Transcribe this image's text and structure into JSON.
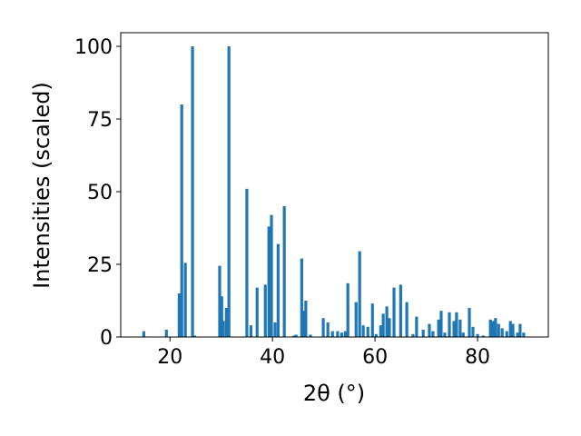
{
  "chart_data": {
    "type": "bar",
    "xlabel": "2θ (°)",
    "ylabel": "Intensities (scaled)",
    "color": "#1f77b4",
    "x": [
      14.9,
      19.3,
      21.8,
      22.3,
      23.0,
      24.4,
      24.8,
      29.7,
      30.1,
      30.4,
      31.0,
      31.5,
      35.0,
      35.8,
      37.0,
      38.6,
      39.3,
      39.8,
      40.5,
      41.1,
      42.3,
      44.2,
      44.6,
      45.7,
      46.0,
      46.5,
      47.4,
      49.9,
      50.8,
      51.7,
      52.7,
      53.5,
      54.2,
      54.7,
      56.3,
      57.0,
      57.7,
      58.6,
      59.5,
      60.2,
      61.1,
      61.6,
      62.3,
      62.8,
      63.7,
      65.0,
      66.2,
      67.4,
      68.1,
      69.4,
      70.6,
      71.3,
      72.4,
      72.9,
      73.6,
      74.5,
      75.4,
      75.9,
      76.6,
      77.2,
      78.4,
      79.1,
      80.0,
      81.1,
      82.5,
      83.0,
      83.5,
      84.1,
      84.8,
      85.7,
      86.4,
      86.9,
      87.8,
      88.3,
      89.0
    ],
    "values": [
      2,
      2.5,
      15,
      80,
      25.5,
      100,
      0.5,
      24.5,
      14,
      5.5,
      10,
      100,
      51,
      4,
      17,
      18,
      38,
      42,
      5,
      32,
      45,
      0.5,
      0.8,
      27,
      9,
      12.5,
      0.8,
      6.5,
      5,
      2,
      2,
      1.5,
      2,
      18.5,
      12,
      29.5,
      4,
      3.5,
      11.5,
      1,
      4,
      8,
      10.5,
      6.5,
      17,
      18,
      12,
      1,
      7,
      2.5,
      4.5,
      2,
      6,
      9,
      1.5,
      8.5,
      5.5,
      8.5,
      6,
      1.5,
      10,
      3.5,
      1,
      0.5,
      6,
      5.5,
      6.5,
      4.5,
      3,
      2,
      5.5,
      4.5,
      1.5,
      4.5,
      1.5
    ],
    "xlim": [
      10.4,
      93.8
    ],
    "xticks": [
      20,
      40,
      60,
      80
    ],
    "ylim": [
      0,
      104.7
    ],
    "yticks": [
      0,
      25,
      50,
      75,
      100
    ]
  }
}
